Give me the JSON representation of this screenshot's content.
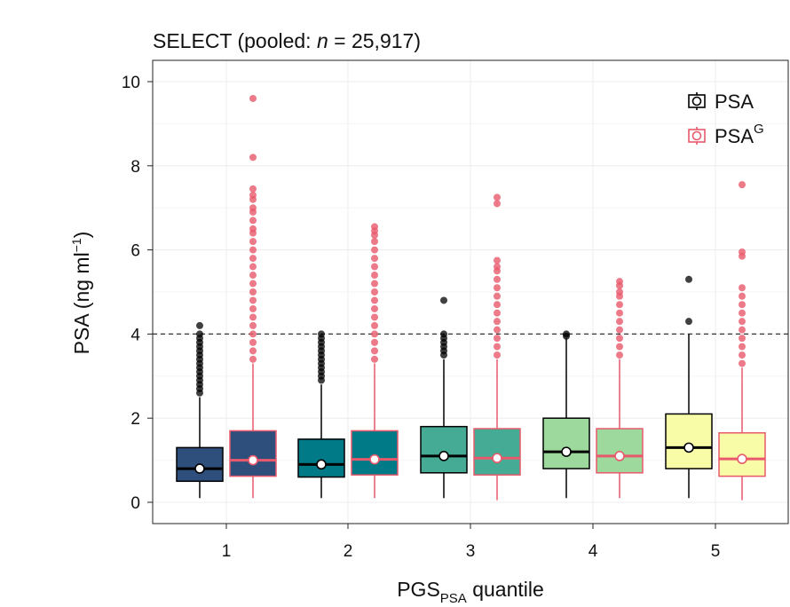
{
  "chart_data": {
    "type": "boxplot",
    "title": "SELECT (pooled: n = 25,917)",
    "title_parts": {
      "prefix": "SELECT (pooled: ",
      "n_symbol": "n",
      "suffix": " = 25,917)"
    },
    "xlabel": {
      "base": "PGS",
      "subscript": "PSA",
      "rest": " quantile"
    },
    "ylabel": {
      "base": "PSA (ng ml",
      "superscript": "−1",
      "close": ")"
    },
    "ylim": [
      -0.4,
      10.4
    ],
    "yticks": [
      0,
      2,
      4,
      6,
      8,
      10
    ],
    "categories": [
      "1",
      "2",
      "3",
      "4",
      "5"
    ],
    "reference_line": 4,
    "legend": [
      {
        "label": "PSA",
        "superscript": "",
        "color": "#000000"
      },
      {
        "label": "PSA",
        "superscript": "G",
        "color": "#e8596b"
      }
    ],
    "fill_colors": [
      "#2e4e7c",
      "#007a87",
      "#46ab95",
      "#9dd99c",
      "#f8fca6"
    ],
    "series": [
      {
        "name": "PSA",
        "edge_color": "#000000",
        "mean_color": "#000000",
        "boxes": [
          {
            "min": 0.1,
            "q1": 0.5,
            "median": 0.8,
            "q3": 1.3,
            "whisker_high": 2.5,
            "mean": 0.8,
            "outliers": [
              2.6,
              2.7,
              2.8,
              2.9,
              3.0,
              3.1,
              3.2,
              3.3,
              3.4,
              3.5,
              3.6,
              3.7,
              3.8,
              3.9,
              4.0,
              4.2
            ]
          },
          {
            "min": 0.1,
            "q1": 0.6,
            "median": 0.9,
            "q3": 1.5,
            "whisker_high": 2.8,
            "mean": 0.9,
            "outliers": [
              2.9,
              3.0,
              3.1,
              3.2,
              3.3,
              3.4,
              3.5,
              3.6,
              3.7,
              3.8,
              3.9,
              4.0
            ]
          },
          {
            "min": 0.1,
            "q1": 0.7,
            "median": 1.1,
            "q3": 1.8,
            "whisker_high": 3.4,
            "mean": 1.1,
            "outliers": [
              3.5,
              3.6,
              3.7,
              3.8,
              3.9,
              4.0,
              4.8
            ]
          },
          {
            "min": 0.1,
            "q1": 0.8,
            "median": 1.2,
            "q3": 2.0,
            "whisker_high": 3.9,
            "mean": 1.2,
            "outliers": [
              3.95,
              4.0
            ]
          },
          {
            "min": 0.1,
            "q1": 0.8,
            "median": 1.3,
            "q3": 2.1,
            "whisker_high": 4.0,
            "mean": 1.3,
            "outliers": [
              4.3,
              5.3
            ]
          }
        ]
      },
      {
        "name": "PSA^G",
        "edge_color": "#e8596b",
        "mean_color": "#e8596b",
        "boxes": [
          {
            "min": 0.1,
            "q1": 0.62,
            "median": 1.0,
            "q3": 1.7,
            "whisker_high": 3.3,
            "mean": 1.0,
            "outliers": [
              3.4,
              3.6,
              3.8,
              4.0,
              4.2,
              4.4,
              4.6,
              4.8,
              5.0,
              5.2,
              5.4,
              5.6,
              5.8,
              6.0,
              6.2,
              6.4,
              6.5,
              6.7,
              6.9,
              7.0,
              7.2,
              7.3,
              7.45,
              8.2,
              9.6
            ]
          },
          {
            "min": 0.1,
            "q1": 0.65,
            "median": 1.02,
            "q3": 1.7,
            "whisker_high": 3.3,
            "mean": 1.02,
            "outliers": [
              3.4,
              3.6,
              3.8,
              4.0,
              4.2,
              4.4,
              4.6,
              4.8,
              5.0,
              5.2,
              5.4,
              5.6,
              5.8,
              6.0,
              6.2,
              6.35,
              6.45,
              6.55
            ]
          },
          {
            "min": 0.05,
            "q1": 0.65,
            "median": 1.05,
            "q3": 1.75,
            "whisker_high": 3.4,
            "mean": 1.05,
            "outliers": [
              3.5,
              3.7,
              3.9,
              4.1,
              4.3,
              4.5,
              4.7,
              4.9,
              5.1,
              5.3,
              5.5,
              5.6,
              5.75,
              7.1,
              7.25
            ]
          },
          {
            "min": 0.1,
            "q1": 0.7,
            "median": 1.1,
            "q3": 1.75,
            "whisker_high": 3.4,
            "mean": 1.1,
            "outliers": [
              3.5,
              3.7,
              3.9,
              4.1,
              4.3,
              4.5,
              4.7,
              4.9,
              5.0,
              5.15,
              5.25
            ]
          },
          {
            "min": 0.05,
            "q1": 0.62,
            "median": 1.03,
            "q3": 1.65,
            "whisker_high": 3.2,
            "mean": 1.03,
            "outliers": [
              3.3,
              3.5,
              3.7,
              3.9,
              4.1,
              4.3,
              4.5,
              4.7,
              4.9,
              5.1,
              5.85,
              5.95,
              7.55
            ]
          }
        ]
      }
    ]
  }
}
